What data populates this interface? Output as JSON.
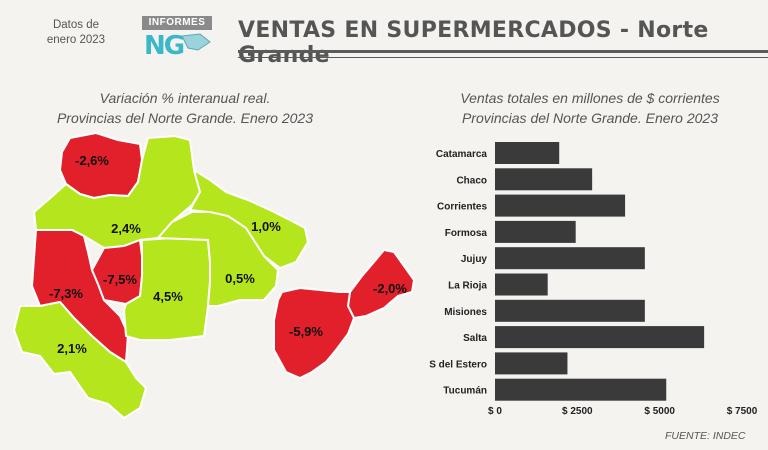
{
  "header": {
    "date_line1": "Datos de",
    "date_line2": "enero 2023",
    "logo_text": "INFORMES",
    "logo_mark": "NG",
    "title": "VENTAS EN SUPERMERCADOS - Norte Grande"
  },
  "map": {
    "subtitle_line1": "Variación % interanual real.",
    "subtitle_line2": "Provincias del Norte Grande. Enero 2023",
    "colors": {
      "positive": "#b5e61d",
      "negative": "#e2202c"
    },
    "provinces": [
      {
        "id": "jujuy",
        "value": -2.6,
        "label": "-2,6%"
      },
      {
        "id": "salta",
        "value": 2.4,
        "label": "2,4%"
      },
      {
        "id": "formosa",
        "value": 1.0,
        "label": "1,0%"
      },
      {
        "id": "catamarca",
        "value": -7.3,
        "label": "-7,3%"
      },
      {
        "id": "tucuman",
        "value": -7.5,
        "label": "-7,5%"
      },
      {
        "id": "santiago",
        "value": 4.5,
        "label": "4,5%"
      },
      {
        "id": "chaco",
        "value": 0.5,
        "label": "0,5%"
      },
      {
        "id": "misiones",
        "value": -2.0,
        "label": "-2,0%"
      },
      {
        "id": "corrientes",
        "value": -5.9,
        "label": "-5,9%"
      },
      {
        "id": "larioja",
        "value": 2.1,
        "label": "2,1%"
      }
    ]
  },
  "chart_data": {
    "type": "bar",
    "orientation": "horizontal",
    "title": "Ventas totales en millones de $ corrientes",
    "subtitle": "Provincias del Norte Grande. Enero 2023",
    "categories": [
      "Catamarca",
      "Chaco",
      "Corrientes",
      "Formosa",
      "Jujuy",
      "La Rioja",
      "Misiones",
      "Salta",
      "S del Estero",
      "Tucumán"
    ],
    "values": [
      1950,
      2950,
      3950,
      2450,
      4550,
      1600,
      4550,
      6350,
      2200,
      5200
    ],
    "xlim": [
      0,
      7500
    ],
    "ticks": [
      0,
      2500,
      5000,
      7500
    ],
    "tick_labels": [
      "$ 0",
      "$ 2500",
      "$ 5000",
      "$ 7500"
    ],
    "bar_color": "#3a3a3a",
    "grid": false
  },
  "footer": {
    "source": "FUENTE: INDEC"
  }
}
